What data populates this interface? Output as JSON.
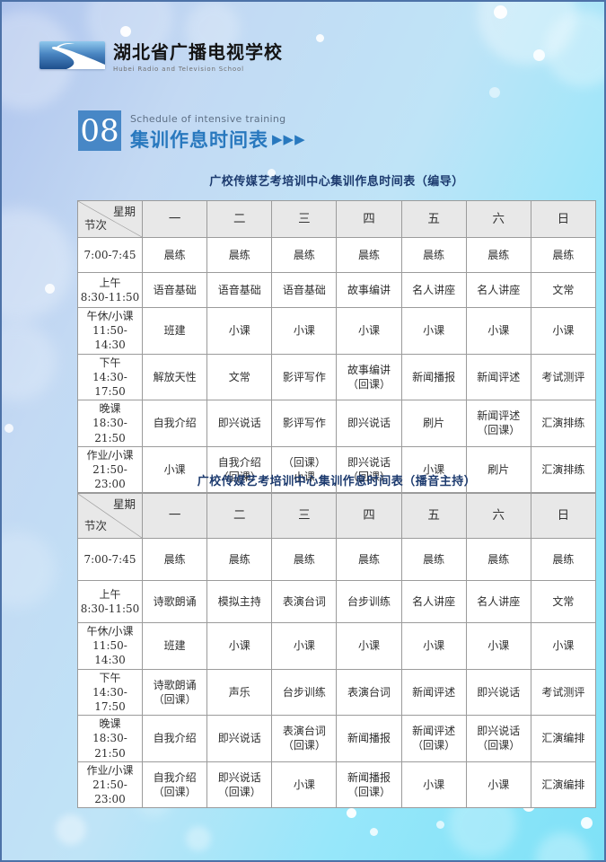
{
  "header": {
    "school_name_cn": "湖北省广播电视学校",
    "school_name_en": "Hubei Radio and Television School"
  },
  "section": {
    "number": "08",
    "subtitle": "Schedule of intensive training",
    "title": "集训作息时间表",
    "arrows": "▶▶▶"
  },
  "colors": {
    "accent_blue": "#2878be",
    "navy_title": "#1c3a6e",
    "section_box_blue": "#4787c6",
    "table_header_gray": "#e8e8e8",
    "background_top_left": "#afc4ed",
    "background_bottom": "#7ee1f7"
  },
  "tables": [
    {
      "title": "广校传媒艺考培训中心集训作息时间表（编导）",
      "corner_top": "星期",
      "corner_bottom": "节次",
      "days": [
        "一",
        "二",
        "三",
        "四",
        "五",
        "六",
        "日"
      ],
      "rows": [
        {
          "period": "7:00-7:45",
          "cells": [
            "晨练",
            "晨练",
            "晨练",
            "晨练",
            "晨练",
            "晨练",
            "晨练"
          ]
        },
        {
          "period": "上午\n8:30-11:50",
          "cells": [
            "语音基础",
            "语音基础",
            "语音基础",
            "故事编讲",
            "名人讲座",
            "名人讲座",
            "文常"
          ]
        },
        {
          "period": "午休/小课\n11:50-14:30",
          "cells": [
            "班建",
            "小课",
            "小课",
            "小课",
            "小课",
            "小课",
            "小课"
          ]
        },
        {
          "period": "下午\n14:30-17:50",
          "cells": [
            "解放天性",
            "文常",
            "影评写作",
            "故事编讲\n（回课）",
            "新闻播报",
            "新闻评述",
            "考试测评"
          ]
        },
        {
          "period": "晚课\n18:30-21:50",
          "cells": [
            "自我介绍",
            "即兴说话",
            "影评写作",
            "即兴说话",
            "刷片",
            "新闻评述\n（回课）",
            "汇演排练"
          ]
        },
        {
          "period": "作业/小课\n21:50-23:00",
          "cells": [
            "小课",
            "自我介绍\n（回课）",
            "（回课）\n小课",
            "即兴说话\n（回课）",
            "小课",
            "刷片",
            "汇演排练"
          ]
        }
      ]
    },
    {
      "title": "广校传媒艺考培训中心集训作息时间表（播音主持）",
      "corner_top": "星期",
      "corner_bottom": "节次",
      "days": [
        "一",
        "二",
        "三",
        "四",
        "五",
        "六",
        "日"
      ],
      "rows": [
        {
          "period": "7:00-7:45",
          "cells": [
            "晨练",
            "晨练",
            "晨练",
            "晨练",
            "晨练",
            "晨练",
            "晨练"
          ]
        },
        {
          "period": "上午\n8:30-11:50",
          "cells": [
            "诗歌朗诵",
            "模拟主持",
            "表演台词",
            "台步训练",
            "名人讲座",
            "名人讲座",
            "文常"
          ]
        },
        {
          "period": "午休/小课\n11:50-14:30",
          "cells": [
            "班建",
            "小课",
            "小课",
            "小课",
            "小课",
            "小课",
            "小课"
          ]
        },
        {
          "period": "下午\n14:30-17:50",
          "cells": [
            "诗歌朗诵\n（回课）",
            "声乐",
            "台步训练",
            "表演台词",
            "新闻评述",
            "即兴说话",
            "考试测评"
          ]
        },
        {
          "period": "晚课\n18:30-21:50",
          "cells": [
            "自我介绍",
            "即兴说话",
            "表演台词\n（回课）",
            "新闻播报",
            "新闻评述\n（回课）",
            "即兴说话\n（回课）",
            "汇演编排"
          ]
        },
        {
          "period": "作业/小课\n21:50-23:00",
          "cells": [
            "自我介绍\n（回课）",
            "即兴说话\n（回课）",
            "小课",
            "新闻播报\n（回课）",
            "小课",
            "小课",
            "汇演编排"
          ]
        }
      ]
    }
  ]
}
